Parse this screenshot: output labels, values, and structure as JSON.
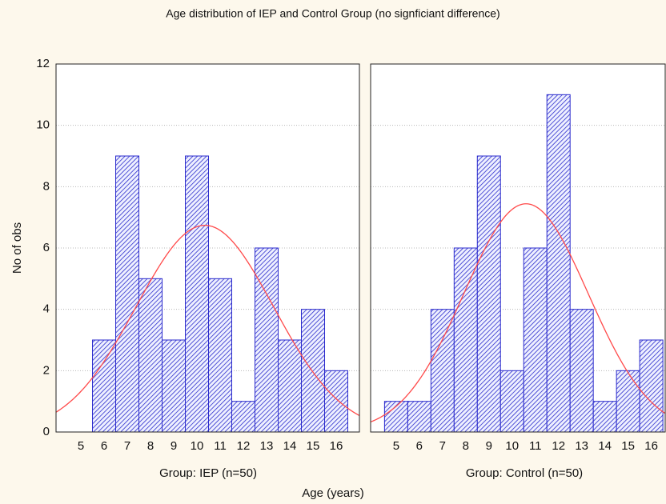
{
  "chart_data": {
    "type": "histogram",
    "title": "Age distribution of IEP and Control Group (no signficiant difference)",
    "xlabel": "Age (years)",
    "ylabel": "No of obs",
    "ylim": [
      0,
      12
    ],
    "yticks": [
      0,
      2,
      4,
      6,
      8,
      10,
      12
    ],
    "grid": true,
    "color": "#2a2acc",
    "fit": "normal",
    "fit_color": "#ff4a4a",
    "panels": [
      {
        "label": "Group: IEP (n=50)",
        "bins": [
          5.5,
          6.5,
          7.5,
          8.5,
          9.5,
          10.5,
          11.5,
          12.5,
          13.5,
          14.5,
          15.5,
          16.5
        ],
        "values": [
          3,
          9,
          5,
          3,
          9,
          5,
          1,
          6,
          3,
          4,
          2
        ],
        "xlim": [
          3.93,
          17.0
        ],
        "xticks": [
          5,
          6,
          7,
          8,
          9,
          10,
          11,
          12,
          13,
          14,
          15,
          16
        ]
      },
      {
        "label": "Group: Control (n=50)",
        "bins": [
          4.5,
          5.5,
          6.5,
          7.5,
          8.5,
          9.5,
          10.5,
          11.5,
          12.5,
          13.5,
          14.5,
          15.5,
          16.5
        ],
        "values": [
          1,
          1,
          4,
          6,
          9,
          2,
          6,
          11,
          4,
          1,
          2,
          3
        ],
        "xlim": [
          3.9,
          16.6
        ],
        "xticks": [
          5,
          6,
          7,
          8,
          9,
          10,
          11,
          12,
          13,
          14,
          15,
          16
        ]
      }
    ]
  }
}
